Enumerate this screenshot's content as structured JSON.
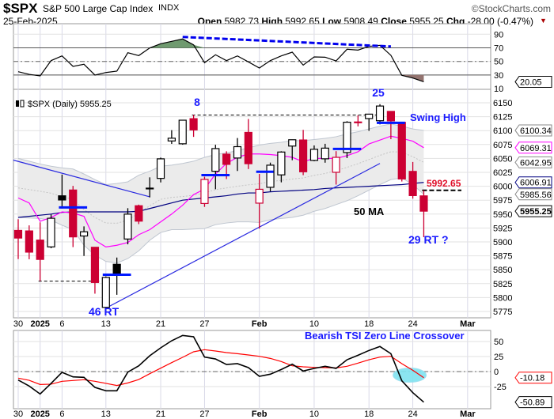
{
  "header": {
    "symbol": "$SPX",
    "name": "S&P 500 Large Cap Index",
    "exchange": "INDX",
    "date": "25-Feb-2025",
    "copyright": "©StockCharts.com",
    "open_label": "Open",
    "open": "5982.73",
    "high_label": "High",
    "high": "5992.65",
    "low_label": "Low",
    "low": "5908.49",
    "close_label": "Close",
    "close": "5955.25",
    "chg_label": "Chg",
    "chg": "-28.00 (-0.47%)",
    "chg_icon": "triangle-down-icon"
  },
  "colors": {
    "up": "#000000",
    "down": "#cc0033",
    "ma50": "#000080",
    "magenta": "#ff00ff",
    "band": "#ebebeb",
    "annotation": "#1a1aff",
    "tsi_signal": "#ff0000",
    "highlight": "#7fe3f0"
  },
  "chart_data": [
    {
      "type": "line",
      "panel": "RSI",
      "ylim": [
        10,
        100
      ],
      "yticks": [
        90,
        70,
        50,
        30,
        10
      ],
      "reference_lines": [
        70,
        50,
        30
      ],
      "grid": true,
      "values": [
        34.9,
        31,
        28.7,
        51.2,
        58.1,
        42.7,
        45.8,
        29.9,
        33.7,
        35.7,
        62.8,
        58.6,
        69.8,
        76,
        79.5,
        83,
        74.4,
        48.1,
        59.8,
        51.2,
        58.1,
        49.3,
        40.3,
        51.2,
        58.1,
        63.6,
        44.6,
        56.6,
        56.2,
        50.8,
        67.9,
        66.7,
        72.1,
        73.7,
        59,
        29.5,
        25.6,
        20.05
      ],
      "last_value_tag": "20.05",
      "divergence_line": {
        "from": [
          "Jan 23",
          86
        ],
        "to": [
          "Feb 20",
          72
        ]
      }
    },
    {
      "type": "candlestick",
      "panel": "price",
      "legend": "$SPX (Daily) 5955.25",
      "ylim": [
        5765,
        6165
      ],
      "yticks": [
        6150,
        6125,
        6100,
        6075,
        6050,
        6025,
        6000,
        5975,
        5950,
        5925,
        5900,
        5875,
        5850,
        5825,
        5800,
        5775
      ],
      "grid": true,
      "x": [
        "Dec 30",
        "Dec 31",
        "Jan 2",
        "Jan 3",
        "Jan 6",
        "Jan 7",
        "Jan 8",
        "Jan 10",
        "Jan 13",
        "Jan 14",
        "Jan 15",
        "Jan 16",
        "Jan 17",
        "Jan 21",
        "Jan 22",
        "Jan 23",
        "Jan 24",
        "Jan 27",
        "Jan 28",
        "Jan 29",
        "Jan 30",
        "Jan 31",
        "Feb 3",
        "Feb 4",
        "Feb 5",
        "Feb 6",
        "Feb 7",
        "Feb 10",
        "Feb 11",
        "Feb 12",
        "Feb 13",
        "Feb 14",
        "Feb 18",
        "Feb 19",
        "Feb 20",
        "Feb 21",
        "Feb 24",
        "Feb 25"
      ],
      "xticks": [
        {
          "label": "30",
          "date": "Dec 30"
        },
        {
          "label": "2025",
          "date": "Jan 2",
          "bold": true
        },
        {
          "label": "6",
          "date": "Jan 6"
        },
        {
          "label": "13",
          "date": "Jan 13"
        },
        {
          "label": "21",
          "date": "Jan 21"
        },
        {
          "label": "27",
          "date": "Jan 27"
        },
        {
          "label": "Feb",
          "date": "Feb 3",
          "bold": true
        },
        {
          "label": "10",
          "date": "Feb 10"
        },
        {
          "label": "18",
          "date": "Feb 18"
        },
        {
          "label": "24",
          "date": "Feb 24"
        },
        {
          "label": "Mar",
          "date": "Mar 3",
          "bold": true
        }
      ],
      "ohlc": [
        [
          5920.67,
          5940.79,
          5869.16,
          5906.94
        ],
        [
          5919.74,
          5929.74,
          5868.86,
          5881.63
        ],
        [
          5903.26,
          5935.09,
          5829.53,
          5868.55
        ],
        [
          5891.07,
          5949.34,
          5888.66,
          5942.47
        ],
        [
          5982.81,
          6021.04,
          5960.01,
          5975.38
        ],
        [
          5993.26,
          6000.68,
          5890.68,
          5909.03
        ],
        [
          5910.66,
          5927.89,
          5874.78,
          5918.25
        ],
        [
          5890.36,
          5890.36,
          5807.0,
          5827.04
        ],
        [
          5782.35,
          5838.05,
          5773.31,
          5836.22
        ],
        [
          5859.8,
          5871.9,
          5805.0,
          5842.91
        ],
        [
          5905.21,
          5960.61,
          5895.68,
          5949.91
        ],
        [
          5965.0,
          5967.0,
          5932.0,
          5937.34
        ],
        [
          5995.5,
          6016.0,
          5980.0,
          5996.66
        ],
        [
          6014.12,
          6051.51,
          6006.88,
          6049.24
        ],
        [
          6081.39,
          6100.81,
          6076.13,
          6086.37
        ],
        [
          6076.32,
          6118.73,
          6074.67,
          6118.71
        ],
        [
          6121.43,
          6128.18,
          6088.74,
          6101.24
        ],
        [
          5969.04,
          6017.17,
          5962.92,
          6012.28
        ],
        [
          6026.97,
          6074.54,
          5994.63,
          6067.7
        ],
        [
          6057.7,
          6062.83,
          6012.96,
          6039.31
        ],
        [
          6050.75,
          6086.64,
          6027.46,
          6071.17
        ],
        [
          6096.79,
          6120.91,
          6030.93,
          6040.53
        ],
        [
          5969.65,
          6022.13,
          5923.93,
          5994.57
        ],
        [
          5998.14,
          6042.48,
          5990.87,
          6037.88
        ],
        [
          6020.45,
          6062.86,
          6007.06,
          6061.48
        ],
        [
          6072.22,
          6084.03,
          6046.83,
          6083.57
        ],
        [
          6083.13,
          6101.28,
          6019.96,
          6025.99
        ],
        [
          6046.4,
          6073.38,
          6044.84,
          6066.44
        ],
        [
          6049.32,
          6076.28,
          6042.34,
          6068.5
        ],
        [
          6025.08,
          6063.06,
          6003.0,
          6051.97
        ],
        [
          6060.59,
          6116.91,
          6050.61,
          6115.07
        ],
        [
          6115.52,
          6127.47,
          6107.62,
          6114.63
        ],
        [
          6121.6,
          6129.63,
          6099.51,
          6129.58
        ],
        [
          6117.76,
          6147.43,
          6111.15,
          6144.15
        ],
        [
          6134.5,
          6134.5,
          6084.59,
          6117.52
        ],
        [
          6114.82,
          6114.82,
          6008.56,
          6013.13
        ],
        [
          6026.69,
          6043.65,
          5977.83,
          5983.25
        ],
        [
          5982.73,
          5992.65,
          5908.49,
          5955.25
        ]
      ],
      "band_upper": [
        6050,
        6045,
        6040,
        6036,
        6033,
        6031,
        6022,
        6012,
        6003,
        6005,
        6008,
        6020,
        6027,
        6036,
        6038,
        6041,
        6045,
        6052,
        6057,
        6060,
        6064,
        6069,
        6074,
        6077,
        6079,
        6082,
        6082,
        6084,
        6086,
        6089,
        6094,
        6098,
        6103,
        6108,
        6112,
        6108,
        6103,
        6100.34
      ],
      "band_middle_last": "6042.95",
      "band_lower": [
        5944,
        5943,
        5942,
        5939,
        5930,
        5922,
        5894,
        5876,
        5865,
        5862,
        5870,
        5884,
        5903,
        5917,
        5922,
        5922,
        5923,
        5924,
        5931,
        5934,
        5936,
        5936,
        5935,
        5940,
        5942,
        5944,
        5948,
        5955,
        5960,
        5967,
        5974,
        5983,
        5993,
        6003,
        6012,
        6015,
        6003,
        5985.56
      ],
      "magenta_line": [
        5979,
        5970,
        5937,
        5944,
        5954,
        5952,
        5946,
        5903,
        5891,
        5894,
        5899,
        5913,
        5922,
        5936,
        5950,
        5966,
        5985,
        5995,
        6022,
        6041,
        6052,
        6058,
        6058,
        6057,
        6055,
        6052,
        6044,
        6050,
        6050,
        6050,
        6055,
        6062,
        6076,
        6083,
        6090,
        6086,
        6081,
        6069.31
      ],
      "ma50": [
        5944,
        5946,
        5948,
        5950,
        5953,
        5954,
        5954,
        5954,
        5954,
        5954,
        5954,
        5955,
        5960,
        5965,
        5970,
        5975,
        5977,
        5979,
        5981,
        5983,
        5986,
        5988,
        5988,
        5990,
        5991,
        5992,
        5993,
        5994,
        5996,
        5997,
        5998,
        5999,
        6000,
        6001,
        6002,
        6003,
        6005,
        6006.91
      ],
      "ma50_label": "50 MA",
      "last_value_tags": [
        "6100.34",
        "6069.31",
        "6042.95",
        "6006.91",
        "5985.56",
        "5955.25"
      ],
      "pivot_bars": [
        {
          "from": "Jan 6",
          "to": "Jan 8",
          "value": 5962
        },
        {
          "from": "Jan 13",
          "to": "Jan 15",
          "value": 5841
        },
        {
          "from": "Jan 27",
          "to": "Jan 29",
          "value": 6020
        },
        {
          "from": "Feb 3",
          "to": "Feb 4",
          "value": 6026
        },
        {
          "from": "Feb 12",
          "to": "Feb 14",
          "value": 6067
        },
        {
          "from": "Feb 19",
          "to": "Feb 21",
          "value": 6114
        }
      ],
      "trendlines": [
        {
          "from": [
            "Dec 27",
            6047
          ],
          "to": [
            "Jan 17",
            5981
          ]
        },
        {
          "from": [
            "Jan 13",
            5781
          ],
          "to": [
            "Feb 19",
            6041
          ]
        }
      ],
      "dashed_levels": [
        {
          "from": "Jan 2",
          "to": "Jan 10",
          "value": 5829.53
        },
        {
          "from": "Jan 24",
          "to": "Feb 19",
          "value": 6128
        },
        {
          "from": "Feb 25",
          "to": "Feb 28",
          "value": 5992.65
        }
      ],
      "annotations": {
        "count_8": "8",
        "count_25": "25",
        "swing_high": "Swing High",
        "level": "5992.65",
        "rt_29": "29 RT ?",
        "rt_46": "46 RT"
      }
    },
    {
      "type": "line",
      "panel": "TSI",
      "title": "Bearish TSI Zero Line Crossover",
      "ylim": [
        -60,
        65
      ],
      "yticks": [
        50,
        25,
        0,
        -25
      ],
      "reference_lines": [
        0
      ],
      "grid": true,
      "series": [
        {
          "values": [
            -14,
            -24.1,
            -37.3,
            -19.7,
            -1.3,
            -8.8,
            -9.6,
            -26.3,
            -32,
            -32,
            -0.9,
            9.6,
            26.3,
            39.5,
            51.3,
            60.1,
            57.9,
            24.1,
            21,
            11.8,
            13.2,
            6.6,
            -7.9,
            -4.4,
            3.5,
            12.3,
            0.9,
            5.3,
            8.8,
            5.3,
            19.7,
            27.2,
            35.1,
            41.7,
            29.8,
            -15.4,
            -35.1,
            -50.89
          ],
          "color": "#000000",
          "last_value_tag": "-50.89"
        },
        {
          "values": [
            -10.9,
            -14.5,
            -21.5,
            -21,
            -16.2,
            -14.9,
            -13.6,
            -16.2,
            -19.7,
            -23.2,
            -18.9,
            -13.2,
            -3.5,
            5.7,
            14.9,
            23.7,
            32.9,
            36.4,
            34.2,
            31.6,
            29.8,
            27.6,
            25.4,
            21.9,
            16.7,
            9.6,
            7.9,
            7,
            6.6,
            6.1,
            8.8,
            14,
            19.7,
            24.1,
            25.4,
            13.2,
            2.2,
            -10.18
          ],
          "color": "#ff0000",
          "last_value_tag": "-10.18"
        }
      ],
      "highlight": {
        "date": "Feb 24",
        "value": -6
      }
    }
  ]
}
